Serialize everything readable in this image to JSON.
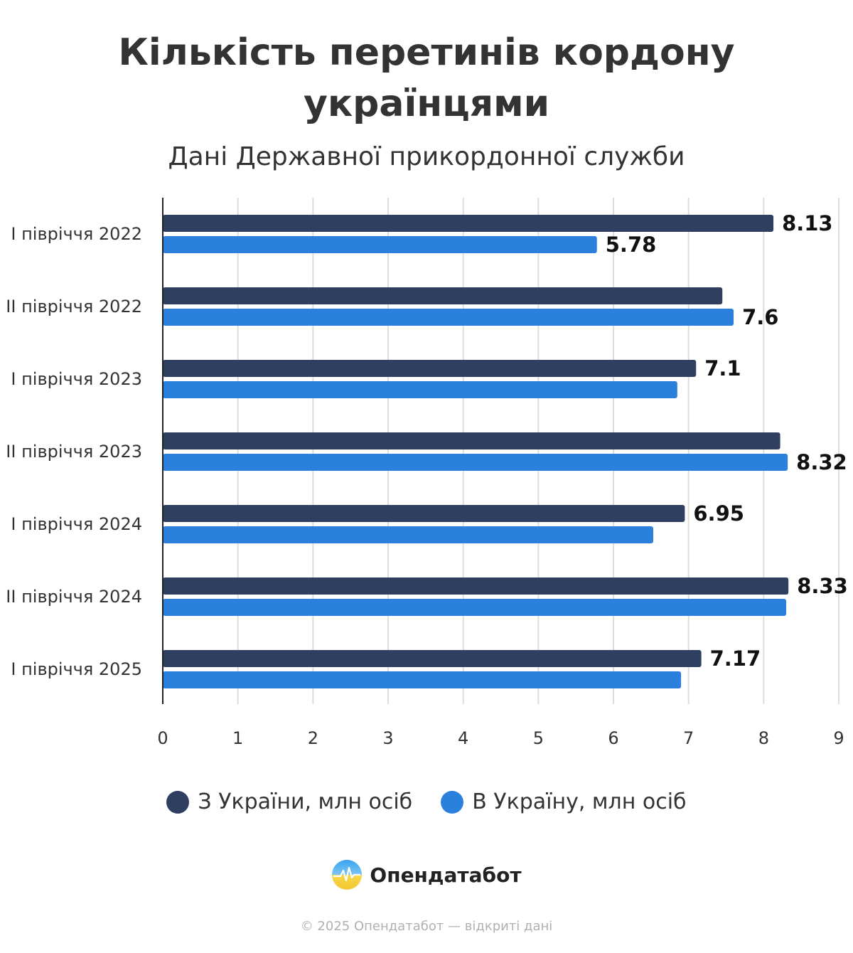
{
  "title_line1": "Кількість перетинів кордону",
  "title_line2": "українцями",
  "subtitle": "Дані Державної прикордонної служби",
  "colors": {
    "out": "#2e3f5f",
    "in": "#2b80db",
    "grid": "#dddddd",
    "axis": "#222222",
    "text": "#333333"
  },
  "chart_data": {
    "type": "bar",
    "orientation": "horizontal",
    "categories": [
      "І півріччя 2022",
      "ІІ півріччя 2022",
      "І півріччя 2023",
      "ІІ півріччя 2023",
      "І півріччя 2024",
      "ІІ півріччя 2024",
      "І півріччя 2025"
    ],
    "series": [
      {
        "name": "З України, млн осіб",
        "color": "#2e3f5f",
        "values": [
          8.13,
          7.45,
          7.1,
          8.22,
          6.95,
          8.33,
          7.17
        ],
        "labels": [
          "8.13",
          "",
          "7.1",
          "",
          "6.95",
          "8.33",
          "7.17"
        ]
      },
      {
        "name": "В Україну, млн осіб",
        "color": "#2b80db",
        "values": [
          5.78,
          7.6,
          6.85,
          8.32,
          6.53,
          8.3,
          6.9
        ],
        "labels": [
          "5.78",
          "7.6",
          "",
          "8.32",
          "",
          "",
          ""
        ]
      }
    ],
    "xlim": [
      0,
      9
    ],
    "xticks": [
      "0",
      "1",
      "2",
      "3",
      "4",
      "5",
      "6",
      "7",
      "8",
      "9"
    ],
    "grid": true,
    "legend_position": "bottom"
  },
  "legend": {
    "out_label": "З України, млн осіб",
    "in_label": "В Україну, млн осіб"
  },
  "brand": {
    "name": "Опендатабот",
    "logo_icon": "opendatabot-logo-icon"
  },
  "footer": "© 2025 Опендатабот — відкриті дані"
}
